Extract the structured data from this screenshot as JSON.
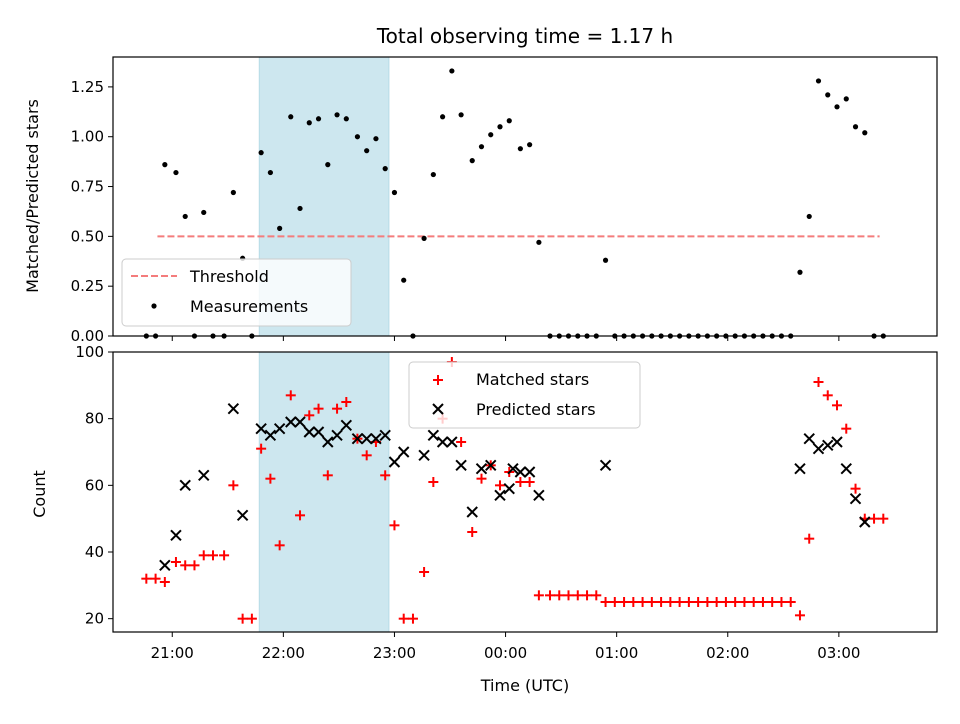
{
  "chart_data": [
    {
      "type": "scatter",
      "title": "Total observing time = 1.17 h",
      "ylabel": "Matched/Predicted stars",
      "ylim": [
        0,
        1.4
      ],
      "yticks": [
        "0.00",
        "0.25",
        "0.50",
        "0.75",
        "1.00",
        "1.25"
      ],
      "xlim": [
        "20:28",
        "03:53"
      ],
      "highlight_span": [
        "21:47",
        "22:57"
      ],
      "highlight_color": "#cde7ef",
      "legend_position": "lower-left",
      "threshold": {
        "name": "Threshold",
        "value": 0.5,
        "x": [
          "20:52",
          "03:22"
        ],
        "color": "#f47c7c"
      },
      "measurements": {
        "name": "Measurements",
        "color": "#000000",
        "points": [
          [
            "20:46",
            0.0
          ],
          [
            "20:51",
            0.0
          ],
          [
            "20:56",
            0.86
          ],
          [
            "21:02",
            0.82
          ],
          [
            "21:07",
            0.6
          ],
          [
            "21:12",
            0.0
          ],
          [
            "21:17",
            0.62
          ],
          [
            "21:22",
            0.0
          ],
          [
            "21:28",
            0.0
          ],
          [
            "21:33",
            0.72
          ],
          [
            "21:38",
            0.39
          ],
          [
            "21:43",
            0.0
          ],
          [
            "21:48",
            0.92
          ],
          [
            "21:53",
            0.82
          ],
          [
            "21:58",
            0.54
          ],
          [
            "22:04",
            1.1
          ],
          [
            "22:09",
            0.64
          ],
          [
            "22:14",
            1.07
          ],
          [
            "22:19",
            1.09
          ],
          [
            "22:24",
            0.86
          ],
          [
            "22:29",
            1.11
          ],
          [
            "22:34",
            1.09
          ],
          [
            "22:40",
            1.0
          ],
          [
            "22:45",
            0.93
          ],
          [
            "22:50",
            0.99
          ],
          [
            "22:55",
            0.84
          ],
          [
            "23:00",
            0.72
          ],
          [
            "23:05",
            0.28
          ],
          [
            "23:10",
            0.0
          ],
          [
            "23:16",
            0.49
          ],
          [
            "23:21",
            0.81
          ],
          [
            "23:26",
            1.1
          ],
          [
            "23:31",
            1.33
          ],
          [
            "23:36",
            1.11
          ],
          [
            "23:42",
            0.88
          ],
          [
            "23:47",
            0.95
          ],
          [
            "23:52",
            1.01
          ],
          [
            "23:57",
            1.05
          ],
          [
            "00:02",
            1.08
          ],
          [
            "00:08",
            0.94
          ],
          [
            "00:13",
            0.96
          ],
          [
            "00:18",
            0.47
          ],
          [
            "00:24",
            0.0
          ],
          [
            "00:29",
            0.0
          ],
          [
            "00:34",
            0.0
          ],
          [
            "00:39",
            0.0
          ],
          [
            "00:44",
            0.0
          ],
          [
            "00:49",
            0.0
          ],
          [
            "00:54",
            0.38
          ],
          [
            "00:59",
            0.0
          ],
          [
            "01:04",
            0.0
          ],
          [
            "01:09",
            0.0
          ],
          [
            "01:14",
            0.0
          ],
          [
            "01:19",
            0.0
          ],
          [
            "01:24",
            0.0
          ],
          [
            "01:29",
            0.0
          ],
          [
            "01:34",
            0.0
          ],
          [
            "01:39",
            0.0
          ],
          [
            "01:44",
            0.0
          ],
          [
            "01:49",
            0.0
          ],
          [
            "01:54",
            0.0
          ],
          [
            "01:59",
            0.0
          ],
          [
            "02:04",
            0.0
          ],
          [
            "02:09",
            0.0
          ],
          [
            "02:14",
            0.0
          ],
          [
            "02:19",
            0.0
          ],
          [
            "02:24",
            0.0
          ],
          [
            "02:29",
            0.0
          ],
          [
            "02:34",
            0.0
          ],
          [
            "02:39",
            0.32
          ],
          [
            "02:44",
            0.6
          ],
          [
            "02:49",
            1.28
          ],
          [
            "02:54",
            1.21
          ],
          [
            "02:59",
            1.15
          ],
          [
            "03:04",
            1.19
          ],
          [
            "03:09",
            1.05
          ],
          [
            "03:14",
            1.02
          ],
          [
            "03:19",
            0.0
          ],
          [
            "03:24",
            0.0
          ]
        ]
      }
    },
    {
      "type": "scatter",
      "xlabel": "Time (UTC)",
      "ylabel": "Count",
      "ylim": [
        16,
        100
      ],
      "yticks": [
        "20",
        "40",
        "60",
        "80",
        "100"
      ],
      "xlim": [
        "20:28",
        "03:53"
      ],
      "xticks": [
        "21:00",
        "22:00",
        "23:00",
        "00:00",
        "01:00",
        "02:00",
        "03:00"
      ],
      "highlight_span": [
        "21:47",
        "22:57"
      ],
      "highlight_color": "#cde7ef",
      "legend_position": "upper-center",
      "series": [
        {
          "name": "Matched stars",
          "marker": "plus",
          "color": "#ff0000",
          "points": [
            [
              "20:46",
              32
            ],
            [
              "20:51",
              32
            ],
            [
              "20:56",
              31
            ],
            [
              "21:02",
              37
            ],
            [
              "21:07",
              36
            ],
            [
              "21:12",
              36
            ],
            [
              "21:17",
              39
            ],
            [
              "21:22",
              39
            ],
            [
              "21:28",
              39
            ],
            [
              "21:33",
              60
            ],
            [
              "21:38",
              20
            ],
            [
              "21:43",
              20
            ],
            [
              "21:48",
              71
            ],
            [
              "21:53",
              62
            ],
            [
              "21:58",
              42
            ],
            [
              "22:04",
              87
            ],
            [
              "22:09",
              51
            ],
            [
              "22:14",
              81
            ],
            [
              "22:19",
              83
            ],
            [
              "22:24",
              63
            ],
            [
              "22:29",
              83
            ],
            [
              "22:34",
              85
            ],
            [
              "22:40",
              74
            ],
            [
              "22:45",
              69
            ],
            [
              "22:50",
              73
            ],
            [
              "22:55",
              63
            ],
            [
              "23:00",
              48
            ],
            [
              "23:05",
              20
            ],
            [
              "23:10",
              20
            ],
            [
              "23:16",
              34
            ],
            [
              "23:21",
              61
            ],
            [
              "23:26",
              80
            ],
            [
              "23:31",
              97
            ],
            [
              "23:36",
              73
            ],
            [
              "23:42",
              46
            ],
            [
              "23:47",
              62
            ],
            [
              "23:52",
              66
            ],
            [
              "23:57",
              60
            ],
            [
              "00:02",
              64
            ],
            [
              "00:08",
              61
            ],
            [
              "00:13",
              61
            ],
            [
              "00:18",
              27
            ],
            [
              "00:24",
              27
            ],
            [
              "00:29",
              27
            ],
            [
              "00:34",
              27
            ],
            [
              "00:39",
              27
            ],
            [
              "00:44",
              27
            ],
            [
              "00:49",
              27
            ],
            [
              "00:54",
              25
            ],
            [
              "00:59",
              25
            ],
            [
              "01:04",
              25
            ],
            [
              "01:09",
              25
            ],
            [
              "01:14",
              25
            ],
            [
              "01:19",
              25
            ],
            [
              "01:24",
              25
            ],
            [
              "01:29",
              25
            ],
            [
              "01:34",
              25
            ],
            [
              "01:39",
              25
            ],
            [
              "01:44",
              25
            ],
            [
              "01:49",
              25
            ],
            [
              "01:54",
              25
            ],
            [
              "01:59",
              25
            ],
            [
              "02:04",
              25
            ],
            [
              "02:09",
              25
            ],
            [
              "02:14",
              25
            ],
            [
              "02:19",
              25
            ],
            [
              "02:24",
              25
            ],
            [
              "02:29",
              25
            ],
            [
              "02:34",
              25
            ],
            [
              "02:39",
              21
            ],
            [
              "02:44",
              44
            ],
            [
              "02:49",
              91
            ],
            [
              "02:54",
              87
            ],
            [
              "02:59",
              84
            ],
            [
              "03:04",
              77
            ],
            [
              "03:09",
              59
            ],
            [
              "03:14",
              50
            ],
            [
              "03:19",
              50
            ],
            [
              "03:24",
              50
            ]
          ]
        },
        {
          "name": "Predicted stars",
          "marker": "x",
          "color": "#000000",
          "points": [
            [
              "20:56",
              36
            ],
            [
              "21:02",
              45
            ],
            [
              "21:07",
              60
            ],
            [
              "21:17",
              63
            ],
            [
              "21:33",
              83
            ],
            [
              "21:38",
              51
            ],
            [
              "21:48",
              77
            ],
            [
              "21:53",
              75
            ],
            [
              "21:58",
              77
            ],
            [
              "22:04",
              79
            ],
            [
              "22:09",
              79
            ],
            [
              "22:14",
              76
            ],
            [
              "22:19",
              76
            ],
            [
              "22:24",
              73
            ],
            [
              "22:29",
              75
            ],
            [
              "22:34",
              78
            ],
            [
              "22:40",
              74
            ],
            [
              "22:45",
              74
            ],
            [
              "22:50",
              74
            ],
            [
              "22:55",
              75
            ],
            [
              "23:00",
              67
            ],
            [
              "23:05",
              70
            ],
            [
              "23:16",
              69
            ],
            [
              "23:21",
              75
            ],
            [
              "23:26",
              73
            ],
            [
              "23:31",
              73
            ],
            [
              "23:36",
              66
            ],
            [
              "23:42",
              52
            ],
            [
              "23:47",
              65
            ],
            [
              "23:52",
              66
            ],
            [
              "23:57",
              57
            ],
            [
              "00:02",
              59
            ],
            [
              "00:04",
              65
            ],
            [
              "00:08",
              64
            ],
            [
              "00:13",
              64
            ],
            [
              "00:18",
              57
            ],
            [
              "00:54",
              66
            ],
            [
              "02:39",
              65
            ],
            [
              "02:44",
              74
            ],
            [
              "02:49",
              71
            ],
            [
              "02:54",
              72
            ],
            [
              "02:59",
              73
            ],
            [
              "03:04",
              65
            ],
            [
              "03:09",
              56
            ],
            [
              "03:14",
              49
            ]
          ]
        }
      ]
    }
  ]
}
